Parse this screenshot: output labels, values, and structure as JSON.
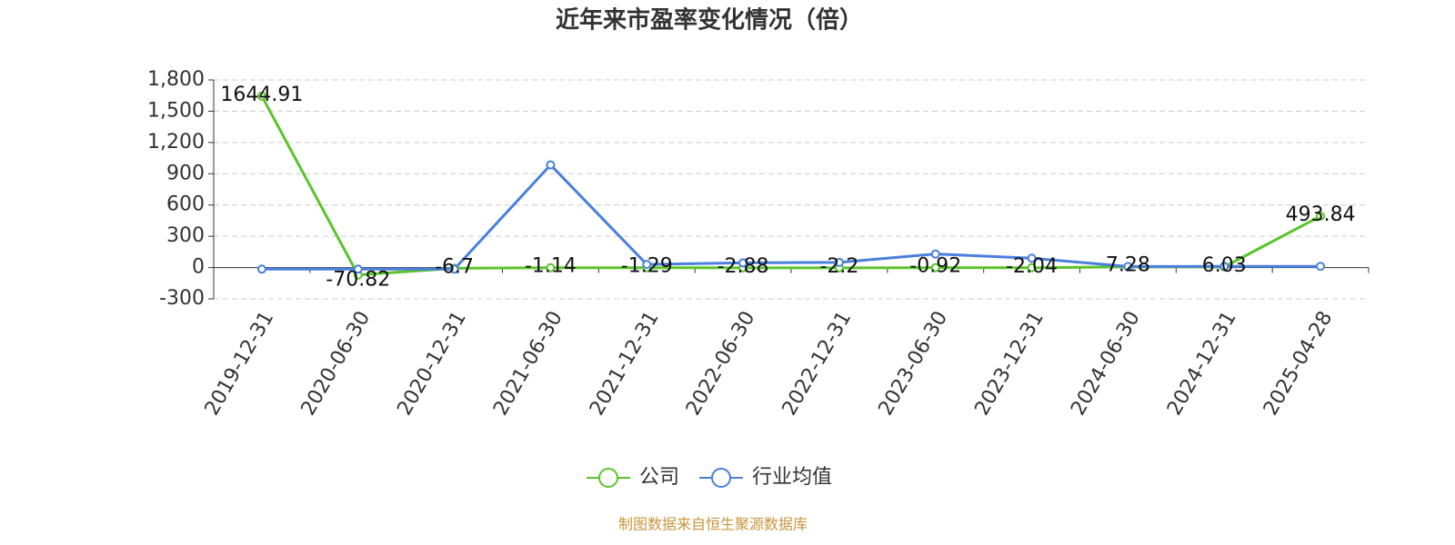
{
  "chart_data": {
    "type": "line",
    "title": "近年来市盈率变化情况（倍）",
    "categories": [
      "2019-12-31",
      "2020-06-30",
      "2020-12-31",
      "2021-06-30",
      "2021-12-31",
      "2022-06-30",
      "2022-12-31",
      "2023-06-30",
      "2023-12-31",
      "2024-06-30",
      "2024-12-31",
      "2025-04-28"
    ],
    "series": [
      {
        "name": "公司",
        "color": "#5bc42a",
        "values": [
          1644.91,
          -70.82,
          -6.7,
          -1.14,
          -1.29,
          -2.88,
          -2.2,
          -0.92,
          -2.04,
          7.28,
          6.03,
          493.84
        ],
        "show_labels": true
      },
      {
        "name": "行业均值",
        "color": "#4a7fdc",
        "values": [
          -15,
          -15,
          -15,
          985,
          30,
          45,
          50,
          130,
          90,
          10,
          12,
          12
        ],
        "show_labels": false
      }
    ],
    "ylim": [
      -300,
      1800
    ],
    "yticks": [
      -300,
      0,
      300,
      600,
      900,
      {
        "value": 1200,
        "label": "1,200"
      },
      {
        "value": 1500,
        "label": "1,500"
      },
      {
        "value": 1800,
        "label": "1,800"
      }
    ],
    "grid": true,
    "legend": "bottom",
    "source": "制图数据来自恒生聚源数据库"
  }
}
